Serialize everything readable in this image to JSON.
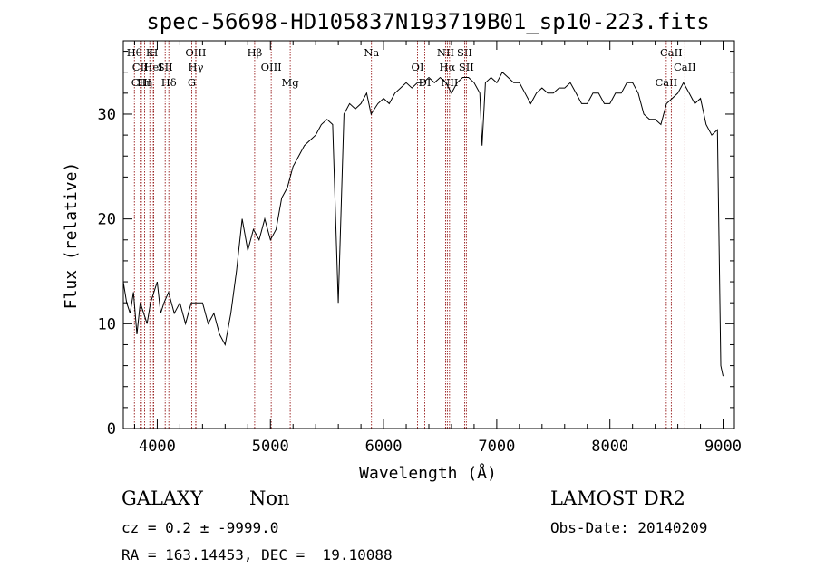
{
  "chart_data": {
    "type": "line",
    "title": "spec-56698-HD105837N193719B01_sp10-223.fits",
    "xlabel": "Wavelength (Å)",
    "ylabel": "Flux (relative)",
    "xlim": [
      3700,
      9100
    ],
    "ylim": [
      0,
      37
    ],
    "xticks": [
      4000,
      5000,
      6000,
      7000,
      8000,
      9000
    ],
    "yticks": [
      0,
      10,
      20,
      30
    ],
    "grid": false,
    "series": [
      {
        "x": [
          3700,
          3730,
          3760,
          3790,
          3820,
          3850,
          3880,
          3910,
          3940,
          3970,
          4000,
          4030,
          4060,
          4100,
          4150,
          4200,
          4250,
          4300,
          4350,
          4400,
          4450,
          4500,
          4550,
          4600,
          4650,
          4700,
          4750,
          4800,
          4850,
          4900,
          4950,
          5000,
          5050,
          5100,
          5150,
          5200,
          5250,
          5300,
          5350,
          5400,
          5450,
          5500,
          5550,
          5600,
          5650,
          5700,
          5750,
          5800,
          5850,
          5890,
          5950,
          6000,
          6050,
          6100,
          6150,
          6200,
          6250,
          6300,
          6350,
          6400,
          6450,
          6500,
          6550,
          6600,
          6650,
          6700,
          6750,
          6800,
          6850,
          6870,
          6900,
          6950,
          7000,
          7050,
          7100,
          7150,
          7200,
          7250,
          7300,
          7350,
          7400,
          7450,
          7500,
          7550,
          7600,
          7650,
          7700,
          7750,
          7800,
          7850,
          7900,
          7950,
          8000,
          8050,
          8100,
          8150,
          8200,
          8250,
          8300,
          8350,
          8400,
          8450,
          8500,
          8550,
          8600,
          8650,
          8700,
          8750,
          8800,
          8850,
          8900,
          8950,
          8980,
          9000
        ],
        "y": [
          14,
          12,
          11,
          13,
          9,
          12,
          11,
          10,
          12,
          13,
          14,
          11,
          12,
          13,
          11,
          12,
          10,
          12,
          12,
          12,
          10,
          11,
          9,
          8,
          11,
          15,
          20,
          17,
          19,
          18,
          20,
          18,
          19,
          22,
          23,
          25,
          26,
          27,
          27.5,
          28,
          29,
          29.5,
          29,
          12,
          30,
          31,
          30.5,
          31,
          32,
          30,
          31,
          31.5,
          31,
          32,
          32.5,
          33,
          32.5,
          33,
          33,
          33.5,
          33,
          33.5,
          33,
          32,
          33,
          33.5,
          33.5,
          33,
          32,
          27,
          33,
          33.5,
          33,
          34,
          33.5,
          33,
          33,
          32,
          31,
          32,
          32.5,
          32,
          32,
          32.5,
          32.5,
          33,
          32,
          31,
          31,
          32,
          32,
          31,
          31,
          32,
          32,
          33,
          33,
          32,
          30,
          29.5,
          29.5,
          29,
          31,
          31.5,
          32,
          33,
          32,
          31,
          31.5,
          29,
          28,
          28.5,
          6,
          5
        ]
      }
    ],
    "lines": [
      {
        "name": "Hθ",
        "x": 3798
      },
      {
        "name": "CII",
        "x": 3850
      },
      {
        "name": "CIII",
        "x": 3860
      },
      {
        "name": "K",
        "x": 3934
      },
      {
        "name": "HeI",
        "x": 3965
      },
      {
        "name": "Hη",
        "x": 3889
      },
      {
        "name": "H",
        "x": 3968
      },
      {
        "name": "SII",
        "x": 4070
      },
      {
        "name": "Hδ",
        "x": 4102
      },
      {
        "name": "OIII",
        "x": 4340
      },
      {
        "name": "Hγ",
        "x": 4341
      },
      {
        "name": "G",
        "x": 4305
      },
      {
        "name": "Hβ",
        "x": 4861
      },
      {
        "name": "OIII",
        "x": 5007
      },
      {
        "name": "Mg",
        "x": 5175
      },
      {
        "name": "Na",
        "x": 5893
      },
      {
        "name": "OI",
        "x": 6300
      },
      {
        "name": "DI",
        "x": 6364
      },
      {
        "name": "NII",
        "x": 6548
      },
      {
        "name": "Hα",
        "x": 6563
      },
      {
        "name": "NII",
        "x": 6583
      },
      {
        "name": "SII",
        "x": 6716
      },
      {
        "name": "SII",
        "x": 6731
      },
      {
        "name": "CaII",
        "x": 8498
      },
      {
        "name": "CaII",
        "x": 8542
      },
      {
        "name": "CaII",
        "x": 8662
      }
    ]
  },
  "info": {
    "class": "GALAXY",
    "subclass": "Non",
    "survey": "LAMOST DR2",
    "cz": "cz = 0.2 ± -9999.0",
    "obs_date": "Obs-Date: 20140209",
    "coords": "RA = 163.14453, DEC =  19.10088"
  }
}
